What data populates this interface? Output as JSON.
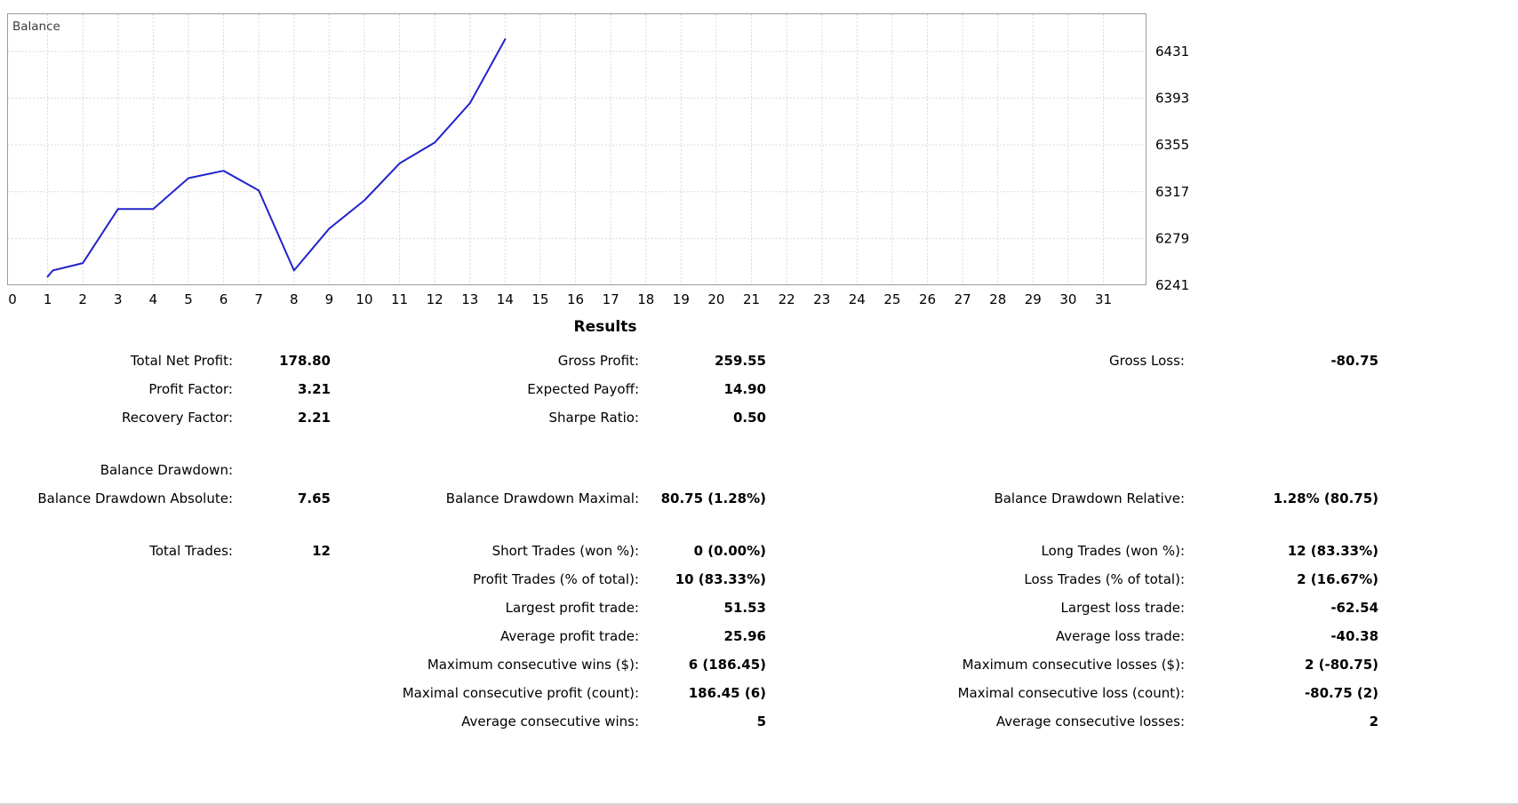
{
  "chart_data": {
    "type": "line",
    "title": "Balance",
    "xlabel": "",
    "ylabel": "",
    "xlim": [
      0,
      31
    ],
    "ylim": [
      6241,
      6462
    ],
    "x_ticks": [
      0,
      1,
      2,
      3,
      4,
      5,
      6,
      7,
      8,
      9,
      10,
      11,
      12,
      13,
      14,
      15,
      16,
      17,
      18,
      19,
      20,
      21,
      22,
      23,
      24,
      25,
      26,
      27,
      28,
      29,
      30,
      31
    ],
    "y_ticks": [
      6241,
      6279,
      6317,
      6355,
      6393,
      6431
    ],
    "grid": "dashed",
    "legend_position": "none",
    "colors": {
      "line": "#2323cc",
      "grid": "#d9d9d9",
      "border": "#9b9b9b",
      "title_text": "#3c3c3c"
    },
    "series": [
      {
        "name": "Balance",
        "points": [
          [
            1,
            6248
          ],
          [
            1.15,
            6253
          ],
          [
            2,
            6259
          ],
          [
            3,
            6303
          ],
          [
            4,
            6303
          ],
          [
            5,
            6328
          ],
          [
            6,
            6334
          ],
          [
            7,
            6318
          ],
          [
            8,
            6253
          ],
          [
            9,
            6287
          ],
          [
            10,
            6310
          ],
          [
            11,
            6340
          ],
          [
            12,
            6357
          ],
          [
            13,
            6389
          ],
          [
            14,
            6441
          ]
        ]
      }
    ]
  },
  "results": {
    "title": "Results",
    "rows": [
      {
        "cells": [
          {
            "label": "Total Net Profit:",
            "value": "178.80"
          },
          {
            "label": "Gross Profit:",
            "value": "259.55"
          },
          {
            "label": "Gross Loss:",
            "value": "-80.75"
          }
        ]
      },
      {
        "cells": [
          {
            "label": "Profit Factor:",
            "value": "3.21"
          },
          {
            "label": "Expected Payoff:",
            "value": "14.90"
          },
          null
        ]
      },
      {
        "cells": [
          {
            "label": "Recovery Factor:",
            "value": "2.21"
          },
          {
            "label": "Sharpe Ratio:",
            "value": "0.50"
          },
          null
        ]
      },
      {
        "spacer": true
      },
      {
        "cells": [
          {
            "label": "Balance Drawdown:",
            "value": ""
          },
          null,
          null
        ]
      },
      {
        "cells": [
          {
            "label": "Balance Drawdown Absolute:",
            "value": "7.65"
          },
          {
            "label": "Balance Drawdown Maximal:",
            "value": "80.75 (1.28%)"
          },
          {
            "label": "Balance Drawdown Relative:",
            "value": "1.28% (80.75)"
          }
        ]
      },
      {
        "spacer": true
      },
      {
        "cells": [
          {
            "label": "Total Trades:",
            "value": "12"
          },
          {
            "label": "Short Trades (won %):",
            "value": "0 (0.00%)"
          },
          {
            "label": "Long Trades (won %):",
            "value": "12 (83.33%)"
          }
        ]
      },
      {
        "cells": [
          null,
          {
            "label": "Profit Trades (% of total):",
            "value": "10 (83.33%)"
          },
          {
            "label": "Loss Trades (% of total):",
            "value": "2 (16.67%)"
          }
        ]
      },
      {
        "cells": [
          null,
          {
            "label": "Largest profit trade:",
            "value": "51.53"
          },
          {
            "label": "Largest loss trade:",
            "value": "-62.54"
          }
        ]
      },
      {
        "cells": [
          null,
          {
            "label": "Average profit trade:",
            "value": "25.96"
          },
          {
            "label": "Average loss trade:",
            "value": "-40.38"
          }
        ]
      },
      {
        "cells": [
          null,
          {
            "label": "Maximum consecutive wins ($):",
            "value": "6 (186.45)"
          },
          {
            "label": "Maximum consecutive losses ($):",
            "value": "2 (-80.75)"
          }
        ]
      },
      {
        "cells": [
          null,
          {
            "label": "Maximal consecutive profit (count):",
            "value": "186.45 (6)"
          },
          {
            "label": "Maximal consecutive loss (count):",
            "value": "-80.75 (2)"
          }
        ]
      },
      {
        "cells": [
          null,
          {
            "label": "Average consecutive wins:",
            "value": "5"
          },
          {
            "label": "Average consecutive losses:",
            "value": "2"
          }
        ]
      }
    ]
  }
}
